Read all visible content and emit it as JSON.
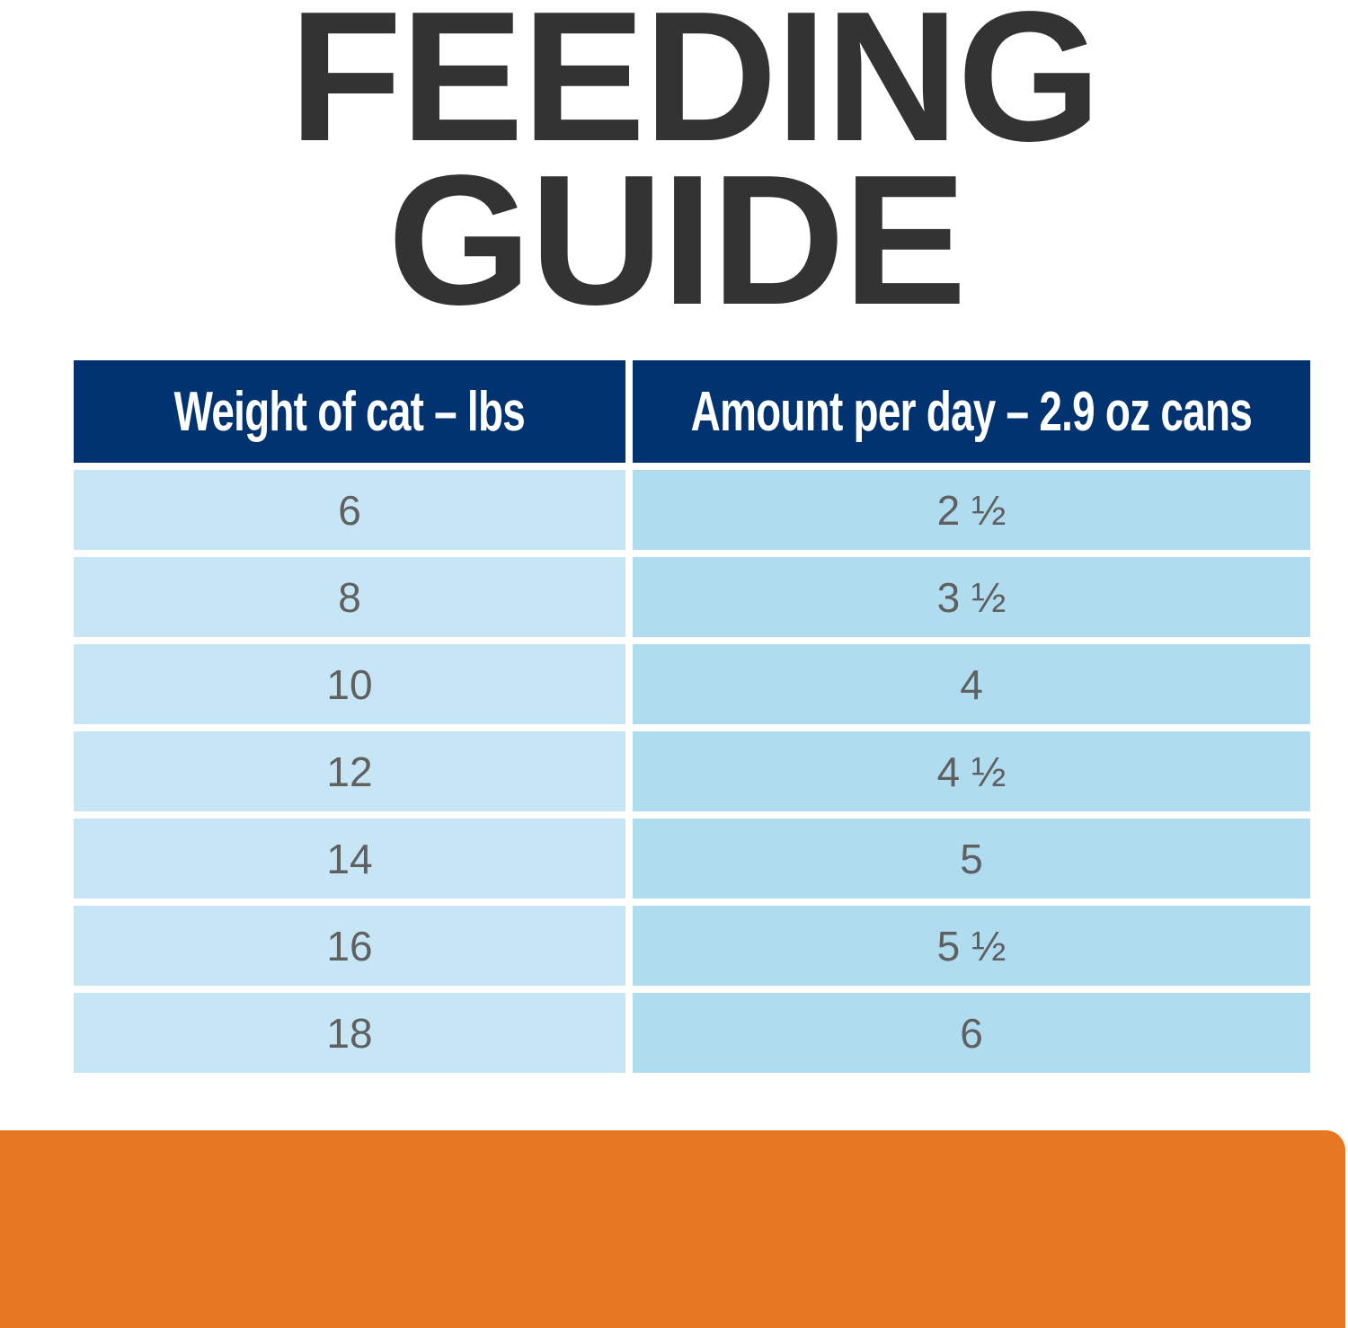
{
  "title": {
    "line1": "FEEDING",
    "line2": "GUIDE"
  },
  "table": {
    "headers": [
      "Weight of cat – lbs",
      "Amount per day – 2.9 oz cans"
    ],
    "rows": [
      [
        "6",
        "2 ½"
      ],
      [
        "8",
        "3 ½"
      ],
      [
        "10",
        "4"
      ],
      [
        "12",
        "4 ½"
      ],
      [
        "14",
        "5"
      ],
      [
        "16",
        "5 ½"
      ],
      [
        "18",
        "6"
      ]
    ]
  },
  "colors": {
    "header": "#003370",
    "col1": "#c6e5f5",
    "col2": "#b0dcf0",
    "title": "#333333",
    "accent": "#e87722"
  }
}
